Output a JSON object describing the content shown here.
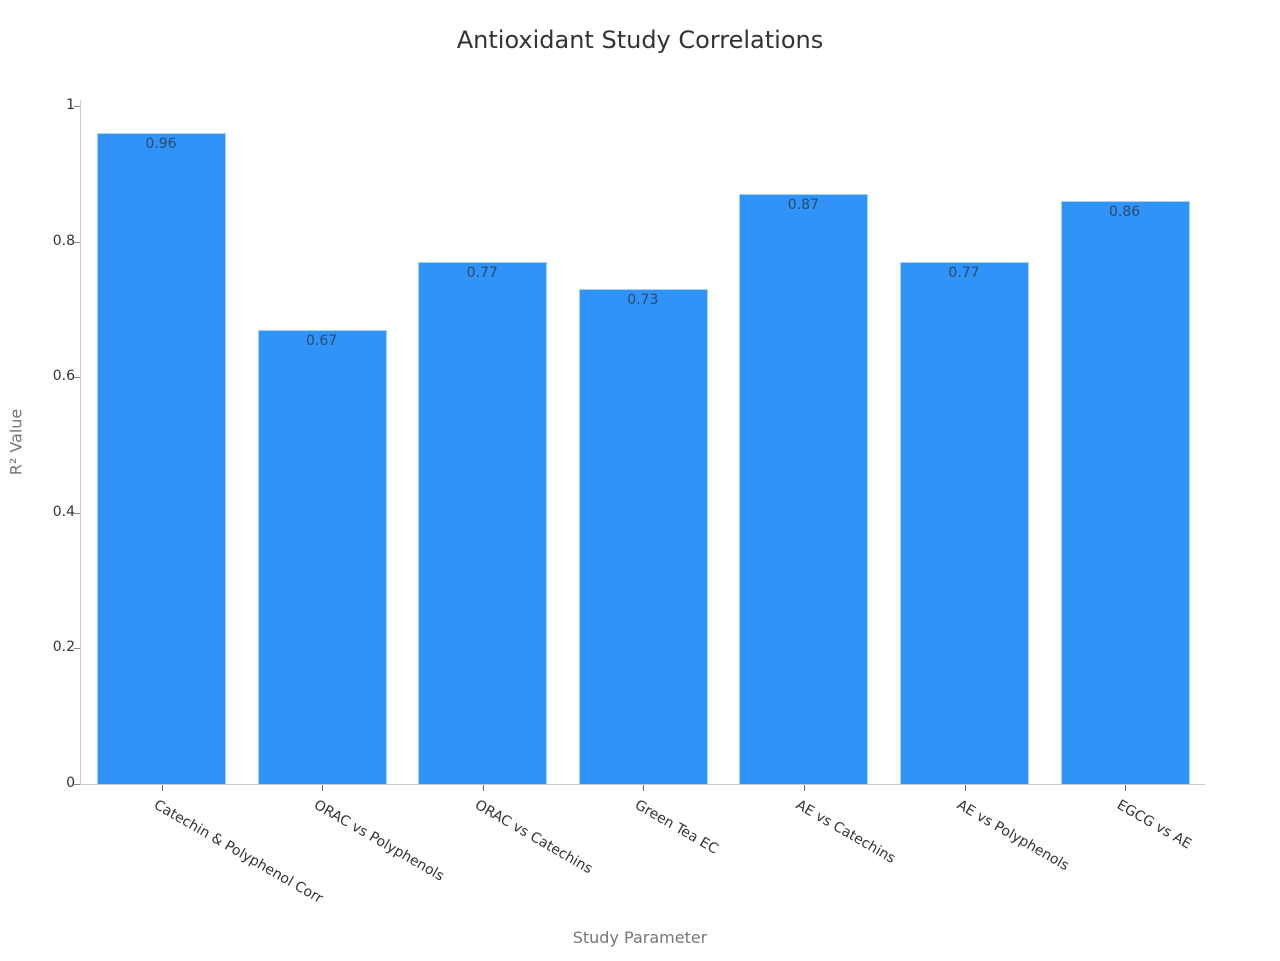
{
  "chart_data": {
    "type": "bar",
    "title": "Antioxidant Study Correlations",
    "xlabel": "Study Parameter",
    "ylabel": "R² Value",
    "ylim": [
      0,
      1
    ],
    "yticks": [
      "0",
      "0.2",
      "0.4",
      "0.6",
      "0.8",
      "1"
    ],
    "grid": false,
    "legend": null,
    "bar_color": "#2f93f7",
    "categories": [
      "Catechin & Polyphenol Corr",
      "ORAC vs Polyphenols",
      "ORAC vs Catechins",
      "Green Tea EC",
      "AE vs Catechins",
      "AE vs Polyphenols",
      "EGCG vs AE"
    ],
    "values": [
      0.96,
      0.67,
      0.77,
      0.73,
      0.87,
      0.77,
      0.86
    ],
    "value_labels": [
      "0.96",
      "0.67",
      "0.77",
      "0.73",
      "0.87",
      "0.77",
      "0.86"
    ]
  }
}
